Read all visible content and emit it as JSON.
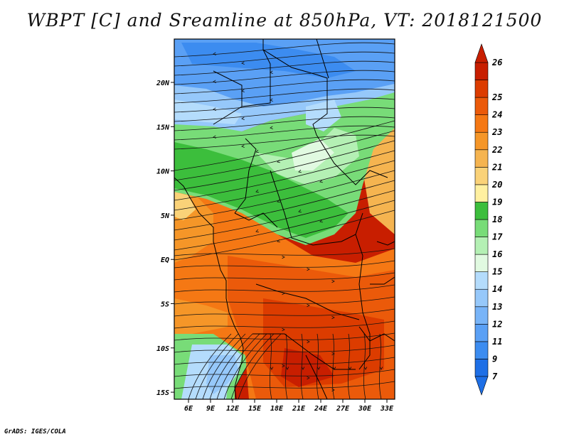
{
  "title": "WBPT [C] and Sreamline at 850hPa, VT: 2018121500",
  "credit": "GrADS: IGES/COLA",
  "map": {
    "lon_ticks": [
      "6E",
      "9E",
      "12E",
      "15E",
      "18E",
      "21E",
      "24E",
      "27E",
      "30E",
      "33E"
    ],
    "lat_ticks": [
      "20N",
      "15N",
      "10N",
      "5N",
      "EQ",
      "5S",
      "10S",
      "15S"
    ]
  },
  "colorbar": {
    "labels": [
      "7",
      "9",
      "11",
      "12",
      "13",
      "14",
      "15",
      "16",
      "17",
      "18",
      "19",
      "20",
      "21",
      "22",
      "23",
      "24",
      "25",
      "26"
    ],
    "colors": [
      "#1e6fe6",
      "#3c8cf0",
      "#5aa0f5",
      "#78b4f8",
      "#96c8fa",
      "#b4dcfc",
      "#e1fae1",
      "#b4f0b4",
      "#78dc78",
      "#3cbe3c",
      "#fff0a0",
      "#fad278",
      "#f5b450",
      "#f59628",
      "#f57814",
      "#eb5a0a",
      "#dc3c00",
      "#c81e00"
    ],
    "top_color": "#c81e00",
    "bottom_color": "#1e6fe6"
  }
}
